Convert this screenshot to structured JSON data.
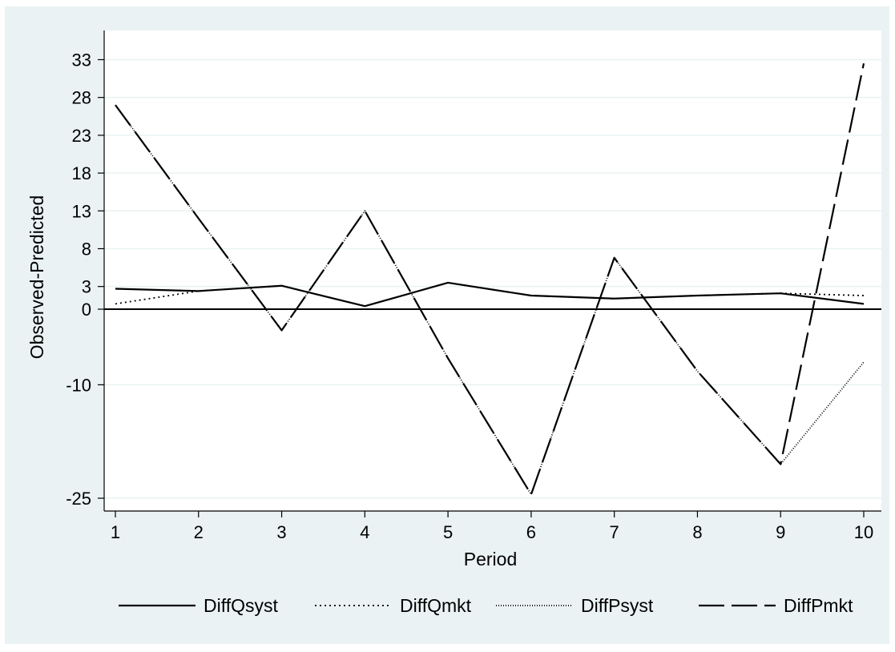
{
  "chart_data": {
    "type": "line",
    "title": "",
    "xlabel": "Period",
    "ylabel": "Observed-Predicted",
    "x": [
      1,
      2,
      3,
      4,
      5,
      6,
      7,
      8,
      9,
      10
    ],
    "xlim": [
      1,
      10
    ],
    "ylim": [
      -25,
      35
    ],
    "yticks": [
      -25,
      -10,
      0,
      3,
      8,
      13,
      18,
      23,
      28,
      33
    ],
    "xticks": [
      1,
      2,
      3,
      4,
      5,
      6,
      7,
      8,
      9,
      10
    ],
    "reference_line_y": 0,
    "grid": true,
    "legend_position": "bottom",
    "series": [
      {
        "name": "DiffQsyst",
        "style": "solid",
        "values": [
          2.7,
          2.4,
          3.1,
          0.4,
          3.5,
          1.8,
          1.4,
          1.8,
          2.1,
          0.7
        ]
      },
      {
        "name": "DiffQmkt",
        "style": "dotted",
        "values": [
          0.7,
          2.4,
          3.1,
          0.4,
          3.5,
          1.8,
          1.4,
          1.8,
          2.1,
          1.8
        ]
      },
      {
        "name": "DiffPsyst",
        "style": "densedot",
        "values": [
          27,
          12,
          -2.8,
          13,
          -6.5,
          -24.5,
          6.8,
          -8.2,
          -20.5,
          -7
        ]
      },
      {
        "name": "DiffPmkt",
        "style": "dash",
        "values": [
          27,
          12,
          -2.8,
          13,
          -6.5,
          -24.5,
          6.8,
          -8.2,
          -20.5,
          32.5
        ]
      }
    ]
  },
  "colors": {
    "background": "#eaf2f3",
    "plot_area": "#ffffff",
    "grid": "#eaf2f3",
    "line": "#000000"
  }
}
